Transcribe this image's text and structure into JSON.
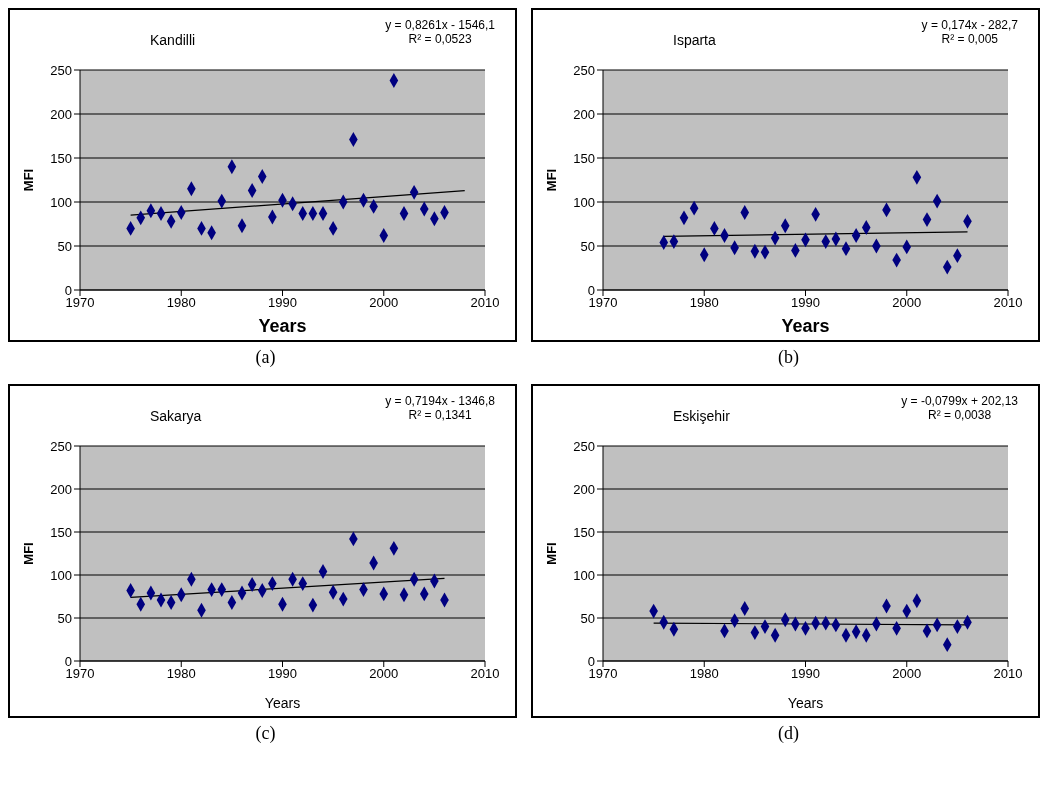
{
  "chart_data": [
    {
      "type": "scatter",
      "title": "Kandilli",
      "xlabel": "Years",
      "ylabel": "MFI",
      "xlim": [
        1970,
        2010
      ],
      "xticks": [
        1970,
        1980,
        1990,
        2000,
        2010
      ],
      "ylim": [
        0,
        250
      ],
      "yticks": [
        0,
        50,
        100,
        150,
        200,
        250
      ],
      "grid": "y",
      "annotations": [
        "y = 0,8261x - 1546,1",
        "R² = 0,0523",
        "(a)"
      ],
      "series": [
        {
          "marker": "diamond",
          "color": "#000080",
          "x": [
            1975,
            1976,
            1977,
            1978,
            1979,
            1980,
            1981,
            1982,
            1983,
            1984,
            1985,
            1986,
            1987,
            1988,
            1989,
            1990,
            1991,
            1992,
            1993,
            1994,
            1995,
            1996,
            1997,
            1998,
            1999,
            2000,
            2001,
            2002,
            2003,
            2004,
            2005,
            2006
          ],
          "values": [
            70,
            82,
            90,
            87,
            78,
            88,
            115,
            70,
            65,
            101,
            140,
            73,
            113,
            129,
            83,
            102,
            98,
            87,
            87,
            87,
            70,
            100,
            171,
            102,
            95,
            62,
            238,
            87,
            111,
            92,
            81,
            88
          ]
        },
        {
          "type": "line",
          "color": "#000000",
          "x": [
            1975,
            2008
          ],
          "values": [
            85,
            113
          ]
        }
      ]
    },
    {
      "type": "scatter",
      "title": "Isparta",
      "xlabel": "Years",
      "ylabel": "MFI",
      "xlim": [
        1970,
        2010
      ],
      "xticks": [
        1970,
        1980,
        1990,
        2000,
        2010
      ],
      "ylim": [
        0,
        250
      ],
      "yticks": [
        0,
        50,
        100,
        150,
        200,
        250
      ],
      "grid": "y",
      "annotations": [
        "y = 0,174x - 282,7",
        "R² = 0,005",
        "(b)"
      ],
      "series": [
        {
          "marker": "diamond",
          "color": "#000080",
          "x": [
            1976,
            1977,
            1978,
            1979,
            1980,
            1981,
            1982,
            1983,
            1984,
            1985,
            1986,
            1987,
            1988,
            1989,
            1990,
            1991,
            1992,
            1993,
            1994,
            1995,
            1996,
            1997,
            1998,
            1999,
            2000,
            2001,
            2002,
            2003,
            2004,
            2005,
            2006
          ],
          "values": [
            54,
            55,
            82,
            93,
            40,
            70,
            62,
            48,
            88,
            44,
            43,
            59,
            73,
            45,
            57,
            86,
            55,
            58,
            47,
            62,
            71,
            50,
            91,
            34,
            49,
            128,
            80,
            101,
            26,
            39,
            78
          ]
        },
        {
          "type": "line",
          "color": "#000000",
          "x": [
            1976,
            2006
          ],
          "values": [
            61,
            66
          ]
        }
      ]
    },
    {
      "type": "scatter",
      "title": "Sakarya",
      "xlabel": "Years",
      "ylabel": "MFI",
      "xlim": [
        1970,
        2010
      ],
      "xticks": [
        1970,
        1980,
        1990,
        2000,
        2010
      ],
      "ylim": [
        0,
        250
      ],
      "yticks": [
        0,
        50,
        100,
        150,
        200,
        250
      ],
      "grid": "y",
      "annotations": [
        "y = 0,7194x - 1346,8",
        "R² = 0,1341",
        "(c)"
      ],
      "series": [
        {
          "marker": "diamond",
          "color": "#000080",
          "x": [
            1975,
            1976,
            1977,
            1978,
            1979,
            1980,
            1981,
            1982,
            1983,
            1984,
            1985,
            1986,
            1987,
            1988,
            1989,
            1990,
            1991,
            1992,
            1993,
            1994,
            1995,
            1996,
            1997,
            1998,
            1999,
            2000,
            2001,
            2002,
            2003,
            2004,
            2005,
            2006
          ],
          "values": [
            82,
            66,
            79,
            71,
            68,
            77,
            95,
            59,
            83,
            83,
            68,
            79,
            89,
            82,
            90,
            66,
            95,
            90,
            65,
            104,
            80,
            72,
            142,
            83,
            114,
            78,
            131,
            77,
            95,
            78,
            93,
            71
          ]
        },
        {
          "type": "line",
          "color": "#000000",
          "x": [
            1975,
            2006
          ],
          "values": [
            74,
            96
          ]
        }
      ]
    },
    {
      "type": "scatter",
      "title": "Eskişehir",
      "xlabel": "Years",
      "ylabel": "MFI",
      "xlim": [
        1970,
        2010
      ],
      "xticks": [
        1970,
        1980,
        1990,
        2000,
        2010
      ],
      "ylim": [
        0,
        250
      ],
      "yticks": [
        0,
        50,
        100,
        150,
        200,
        250
      ],
      "grid": "y",
      "annotations": [
        "y = -0,0799x + 202,13",
        "R² = 0,0038",
        "(d)"
      ],
      "series": [
        {
          "marker": "diamond",
          "color": "#000080",
          "x": [
            1975,
            1976,
            1977,
            1982,
            1983,
            1984,
            1985,
            1986,
            1987,
            1988,
            1989,
            1990,
            1991,
            1992,
            1993,
            1994,
            1995,
            1996,
            1997,
            1998,
            1999,
            2000,
            2001,
            2002,
            2003,
            2004,
            2005,
            2006
          ],
          "values": [
            58,
            45,
            37,
            35,
            47,
            61,
            33,
            40,
            30,
            48,
            43,
            38,
            44,
            44,
            42,
            30,
            34,
            30,
            43,
            64,
            38,
            58,
            70,
            35,
            42,
            19,
            40,
            45
          ]
        },
        {
          "type": "line",
          "color": "#000000",
          "x": [
            1975,
            2006
          ],
          "values": [
            44,
            42
          ]
        }
      ]
    }
  ]
}
